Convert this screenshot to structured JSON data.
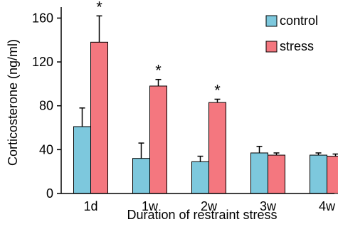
{
  "chart_data": {
    "type": "bar",
    "title": "",
    "xlabel": "Duration of restraint stress",
    "ylabel": "Corticosterone (ng/ml)",
    "categories": [
      "1d",
      "1w",
      "2w",
      "3w",
      "4w"
    ],
    "ylim": [
      0,
      170
    ],
    "yticks": [
      "0",
      "40",
      "80",
      "120",
      "160"
    ],
    "series": [
      {
        "name": "control",
        "color": "#7dc8dd",
        "values": [
          61,
          32,
          29,
          37,
          35
        ],
        "errors": [
          17,
          14,
          5,
          6,
          2
        ]
      },
      {
        "name": "stress",
        "color": "#f4777f",
        "values": [
          138,
          98,
          83,
          35,
          34
        ],
        "errors": [
          24,
          6,
          3,
          2,
          2
        ]
      }
    ],
    "significance": [
      "*",
      "*",
      "*",
      "",
      ""
    ],
    "legend_position": "top-right",
    "grid": false
  }
}
